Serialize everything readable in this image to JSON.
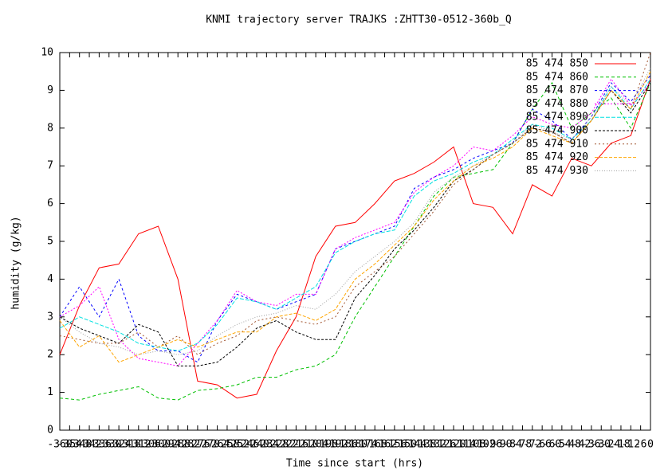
{
  "chart_data": {
    "type": "line",
    "title": "KNMI trajectory server TRAJKS :ZHTT30-0512-360b_Q",
    "x_label": "Time since start (hrs)",
    "y_label": "humidity (g/kg)",
    "xlim": [
      -360,
      0
    ],
    "ylim": [
      0,
      10
    ],
    "xticks": [
      -360,
      -354,
      -348,
      -342,
      -336,
      -330,
      -324,
      -318,
      -312,
      -306,
      -300,
      -294,
      -288,
      -282,
      -276,
      -270,
      -264,
      -258,
      -252,
      -246,
      -240,
      -234,
      -228,
      -222,
      -216,
      -210,
      -204,
      -198,
      -192,
      -186,
      -180,
      -174,
      -168,
      -162,
      -156,
      -150,
      -144,
      -138,
      -132,
      -126,
      -120,
      -114,
      -108,
      -102,
      -96,
      -90,
      -84,
      -78,
      -72,
      -66,
      -60,
      -54,
      -48,
      -42,
      -36,
      -30,
      -24,
      -18,
      -12,
      -6,
      0
    ],
    "yticks": [
      0,
      1,
      2,
      3,
      4,
      5,
      6,
      7,
      8,
      9,
      10
    ],
    "legend": "top-right",
    "x": [
      -360,
      -348,
      -336,
      -324,
      -312,
      -300,
      -288,
      -276,
      -264,
      -252,
      -240,
      -228,
      -216,
      -204,
      -192,
      -180,
      -168,
      -156,
      -144,
      -132,
      -120,
      -108,
      -96,
      -84,
      -72,
      -60,
      -48,
      -36,
      -24,
      -12,
      0
    ],
    "series": [
      {
        "name": "85 474 850",
        "color": "#ff0000",
        "values": [
          2.0,
          3.3,
          4.3,
          4.4,
          5.2,
          5.4,
          4.0,
          1.3,
          1.2,
          0.85,
          0.95,
          2.1,
          3.0,
          4.6,
          5.4,
          5.5,
          6.0,
          6.6,
          6.8,
          7.1,
          7.5,
          6.0,
          5.9,
          5.2,
          6.5,
          6.2,
          7.2,
          7.0,
          7.6,
          7.8,
          9.3
        ]
      },
      {
        "name": "85 474 860",
        "color": "#00c000",
        "values": [
          0.85,
          0.8,
          0.95,
          1.05,
          1.15,
          0.85,
          0.8,
          1.05,
          1.1,
          1.2,
          1.4,
          1.4,
          1.6,
          1.7,
          2.0,
          3.0,
          3.8,
          4.6,
          5.4,
          6.2,
          6.7,
          6.8,
          6.9,
          7.6,
          8.5,
          9.2,
          8.0,
          8.4,
          8.8,
          8.0,
          9.2
        ]
      },
      {
        "name": "85 474 870",
        "color": "#0000ff",
        "values": [
          3.0,
          3.8,
          3.0,
          4.0,
          2.5,
          2.1,
          2.1,
          1.8,
          2.9,
          3.6,
          3.4,
          3.2,
          3.4,
          3.6,
          4.8,
          5.0,
          5.2,
          5.4,
          6.4,
          6.7,
          6.9,
          7.2,
          7.4,
          7.6,
          8.5,
          8.2,
          7.7,
          8.3,
          9.2,
          8.7,
          9.4
        ]
      },
      {
        "name": "85 474 880",
        "color": "#ff00ff",
        "values": [
          3.0,
          3.3,
          3.8,
          2.4,
          1.9,
          1.8,
          1.7,
          2.3,
          2.9,
          3.7,
          3.4,
          3.3,
          3.6,
          3.6,
          4.8,
          5.1,
          5.3,
          5.5,
          6.3,
          6.7,
          7.0,
          7.5,
          7.4,
          7.8,
          8.3,
          8.1,
          8.0,
          8.4,
          9.3,
          8.6,
          9.2
        ]
      },
      {
        "name": "85 474 890",
        "color": "#00e0e0",
        "values": [
          2.7,
          3.0,
          2.8,
          2.6,
          2.3,
          2.2,
          2.1,
          2.3,
          2.8,
          3.5,
          3.4,
          3.2,
          3.5,
          3.8,
          4.7,
          5.0,
          5.2,
          5.3,
          6.2,
          6.6,
          6.8,
          7.1,
          7.3,
          7.7,
          8.1,
          8.0,
          7.7,
          8.2,
          9.1,
          8.5,
          9.3
        ]
      },
      {
        "name": "85 474 900",
        "color": "#000000",
        "values": [
          3.0,
          2.7,
          2.5,
          2.3,
          2.8,
          2.6,
          1.7,
          1.7,
          1.8,
          2.2,
          2.7,
          2.9,
          2.6,
          2.4,
          2.4,
          3.5,
          4.1,
          4.8,
          5.3,
          5.9,
          6.6,
          6.9,
          7.3,
          7.6,
          8.0,
          7.9,
          7.6,
          8.2,
          9.0,
          8.4,
          9.2
        ]
      },
      {
        "name": "85 474 910",
        "color": "#a0522d",
        "values": [
          2.5,
          2.4,
          2.3,
          2.3,
          2.6,
          2.2,
          2.5,
          2.0,
          2.3,
          2.5,
          2.9,
          3.0,
          2.9,
          2.8,
          3.0,
          3.8,
          4.2,
          4.6,
          5.2,
          5.8,
          6.5,
          6.9,
          7.3,
          7.6,
          8.0,
          7.9,
          7.6,
          8.2,
          9.0,
          8.5,
          10.0
        ]
      },
      {
        "name": "85 474 920",
        "color": "#ffa500",
        "values": [
          2.9,
          2.2,
          2.5,
          1.8,
          2.0,
          2.2,
          2.4,
          2.2,
          2.4,
          2.6,
          2.6,
          3.0,
          3.1,
          2.9,
          3.2,
          4.0,
          4.4,
          4.9,
          5.4,
          6.1,
          6.6,
          7.0,
          7.2,
          7.5,
          8.0,
          7.8,
          7.6,
          8.2,
          9.0,
          8.5,
          9.5
        ]
      },
      {
        "name": "85 474 930",
        "color": "#a0a0a0",
        "values": [
          3.0,
          2.6,
          2.3,
          2.2,
          2.0,
          2.1,
          2.0,
          2.1,
          2.5,
          2.8,
          3.0,
          3.1,
          3.3,
          3.2,
          3.6,
          4.2,
          4.6,
          5.0,
          5.5,
          6.3,
          6.7,
          7.0,
          7.3,
          7.6,
          8.1,
          7.9,
          7.7,
          8.3,
          9.1,
          8.6,
          9.6
        ]
      }
    ]
  }
}
